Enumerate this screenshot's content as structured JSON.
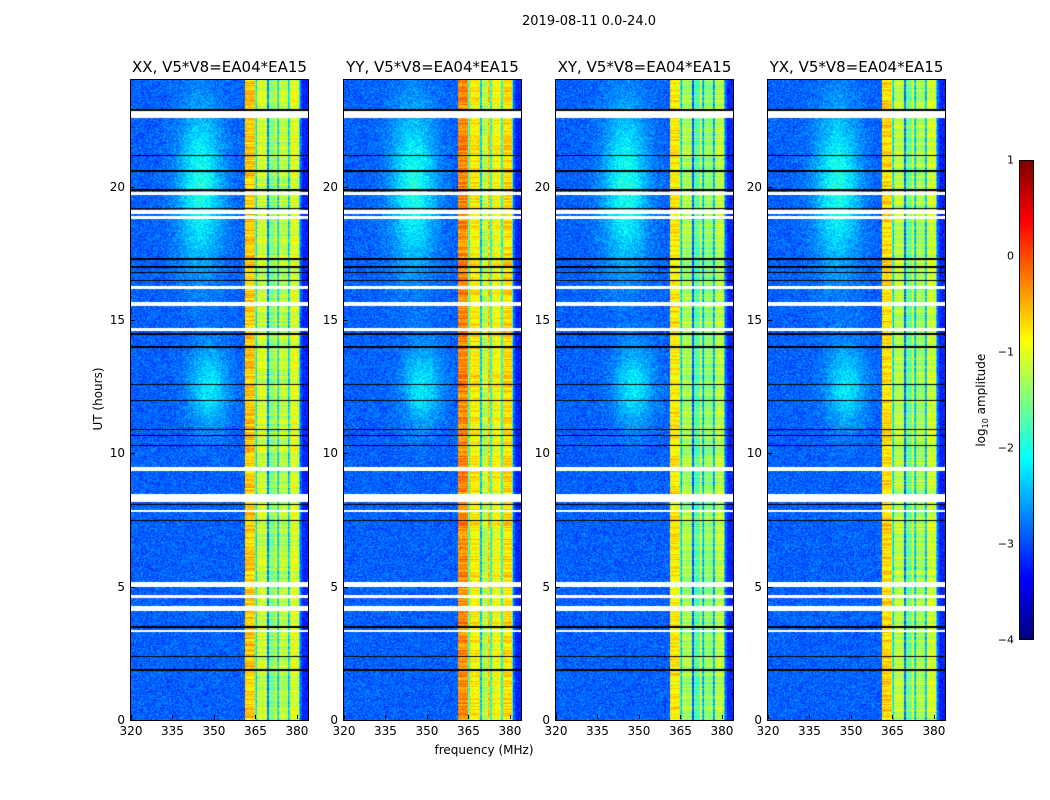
{
  "chart_data": {
    "type": "heatmap",
    "title": "2019-08-11 0.0-24.0",
    "xlabel": "frequency (MHz)",
    "ylabel": "UT (hours)",
    "xlim": [
      320,
      384
    ],
    "ylim": [
      0,
      24
    ],
    "xticks": [
      "320",
      "335",
      "350",
      "365",
      "380"
    ],
    "xtick_values": [
      320,
      335,
      350,
      365,
      380
    ],
    "yticks": [
      "0",
      "5",
      "10",
      "15",
      "20"
    ],
    "ytick_values": [
      0,
      5,
      10,
      15,
      20
    ],
    "panels": [
      {
        "title": "XX, V5*V8=EA04*EA15",
        "band_level": -0.6
      },
      {
        "title": "YY, V5*V8=EA04*EA15",
        "band_level": -0.3
      },
      {
        "title": "XY, V5*V8=EA04*EA15",
        "band_level": -0.8
      },
      {
        "title": "YX, V5*V8=EA04*EA15",
        "band_level": -0.7
      }
    ],
    "background_level": -2.9,
    "bright_band_mhz": [
      361,
      381
    ],
    "spectral_window_edges_mhz": [
      365,
      369.5,
      373,
      377,
      381
    ],
    "flagged_hours": [
      [
        22.6,
        22.85
      ],
      [
        19.7,
        19.8
      ],
      [
        19.0,
        19.15
      ],
      [
        18.8,
        18.9
      ],
      [
        16.2,
        16.3
      ],
      [
        15.55,
        15.7
      ],
      [
        14.6,
        14.7
      ],
      [
        9.35,
        9.5
      ],
      [
        8.2,
        8.5
      ],
      [
        7.8,
        7.9
      ],
      [
        5.0,
        5.2
      ],
      [
        4.6,
        4.7
      ],
      [
        4.1,
        4.3
      ],
      [
        3.3,
        3.4
      ]
    ],
    "black_line_hours": [
      22.9,
      21.2,
      20.6,
      19.9,
      19.2,
      17.3,
      17.0,
      16.8,
      16.5,
      14.5,
      14.0,
      12.6,
      12.0,
      10.9,
      10.7,
      10.3,
      8.1,
      7.5,
      3.5,
      2.4,
      1.9
    ],
    "colormap": "jet",
    "colorbar": {
      "label": "log10 amplitude",
      "label_main": "log",
      "label_sub": "10",
      "label_rest": " amplitude",
      "range": [
        -4,
        1
      ],
      "ticks": [
        "1",
        "0",
        "−1",
        "−2",
        "−3",
        "−4"
      ],
      "tick_values": [
        1,
        0,
        -1,
        -2,
        -3,
        -4
      ]
    }
  }
}
